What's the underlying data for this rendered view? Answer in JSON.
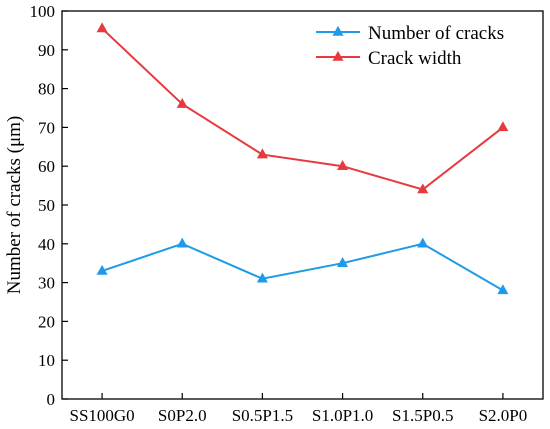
{
  "chart_data": {
    "type": "line",
    "title": "",
    "xlabel": "",
    "ylabel": "Number of cracks (μm)",
    "categories": [
      "SS100G0",
      "S0P2.0",
      "S0.5P1.5",
      "S1.0P1.0",
      "S1.5P0.5",
      "S2.0P0"
    ],
    "ylim": [
      0,
      100
    ],
    "yticks": [
      0,
      10,
      20,
      30,
      40,
      50,
      60,
      70,
      80,
      90,
      100
    ],
    "grid": false,
    "legend_position": "top-right",
    "series": [
      {
        "name": "Number of cracks",
        "color": "#1e9be8",
        "marker": "triangle",
        "values": [
          33,
          40,
          31,
          35,
          40,
          28
        ]
      },
      {
        "name": "Crack width",
        "color": "#e8393f",
        "marker": "triangle",
        "values": [
          95.5,
          76,
          63,
          60,
          54,
          70
        ]
      }
    ]
  }
}
